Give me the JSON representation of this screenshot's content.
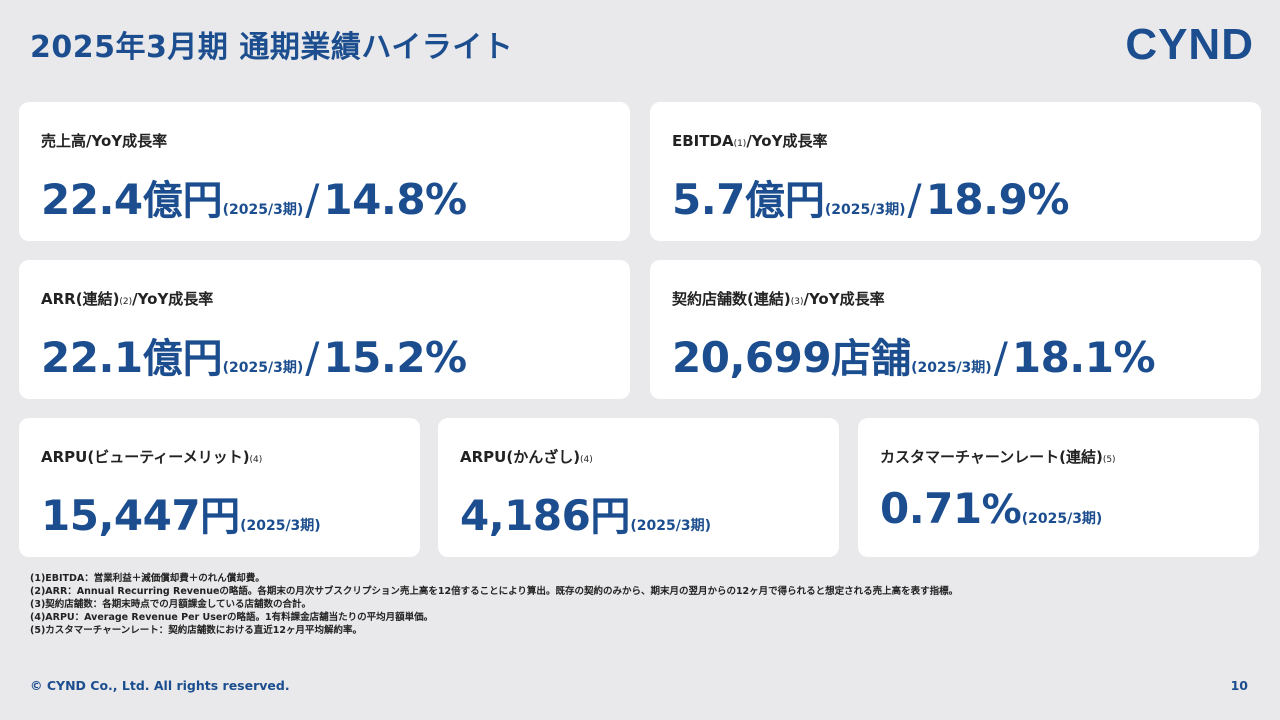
{
  "header": {
    "title": "2025年3月期 通期業績ハイライト",
    "logo": "CYND"
  },
  "cards": [
    {
      "label": "売上高/YoY成長率",
      "note": "",
      "suffix": "",
      "value": "22.4",
      "unit": "億円",
      "period": "(2025/3期)",
      "slash": "/",
      "growth": "14.8%"
    },
    {
      "label": "EBITDA",
      "note": "(1)",
      "suffix": "/YoY成長率",
      "value": "5.7",
      "unit": "億円",
      "period": "(2025/3期)",
      "slash": "/",
      "growth": "18.9%"
    },
    {
      "label": "ARR(連結)",
      "note": "(2)",
      "suffix": "/YoY成長率",
      "value": "22.1",
      "unit": "億円",
      "period": "(2025/3期)",
      "slash": "/",
      "growth": "15.2%"
    },
    {
      "label": "契約店舗数(連結)",
      "note": "(3)",
      "suffix": "/YoY成長率",
      "value": "20,699",
      "unit": "店舗",
      "period": "(2025/3期)",
      "slash": "/",
      "growth": "18.1%"
    },
    {
      "label": "ARPU(ビューティーメリット)",
      "note": "(4)",
      "suffix": "",
      "value": "15,447",
      "unit": "円",
      "period": "(2025/3期)"
    },
    {
      "label": "ARPU(かんざし)",
      "note": "(4)",
      "suffix": "",
      "value": "4,186",
      "unit": "円",
      "period": "(2025/3期)"
    },
    {
      "label": "カスタマーチャーンレート(連結)",
      "note": "(5)",
      "suffix": "",
      "value": "0.71",
      "unit": "%",
      "period": "(2025/3期)"
    }
  ],
  "footnotes": [
    "(1)EBITDA：営業利益＋減価償却費＋のれん償却費。",
    "(2)ARR：Annual Recurring Revenueの略語。各期末の月次サブスクリプション売上高を12倍することにより算出。既存の契約のみから、期末月の翌月からの12ヶ月で得られると想定される売上高を表す指標。",
    "(3)契約店舗数：各期末時点での月額課金している店舗数の合計。",
    "(4)ARPU：Average Revenue Per Userの略語。1有料課金店舗当たりの平均月額単価。",
    "(5)カスタマーチャーンレート：契約店舗数における直近12ヶ月平均解約率。"
  ],
  "footer": {
    "copyright": "© CYND Co., Ltd. All rights reserved.",
    "page": "10"
  }
}
